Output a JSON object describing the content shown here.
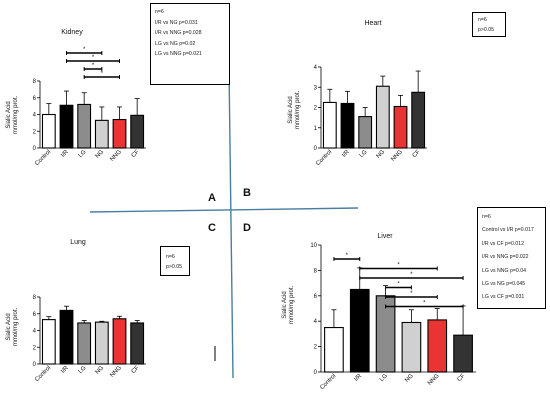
{
  "colors": {
    "Control": "#ffffff",
    "I/R": "#000000",
    "LG": "#8c8c8c",
    "NG": "#d0d0d0",
    "NNG": "#ea3434",
    "CF": "#333333",
    "divider": "#4a7ea0"
  },
  "quadrant_labels": [
    "A",
    "B",
    "C",
    "D"
  ],
  "chart_data": [
    {
      "id": "kidney",
      "type": "bar",
      "title": "Kidney",
      "ylabel_line1": "Sialic Acid",
      "ylabel_line2": "mmol/mg prot.",
      "categories": [
        "Control",
        "I/R",
        "LG",
        "NG",
        "NNG",
        "CF"
      ],
      "values": [
        4.0,
        5.1,
        5.2,
        3.3,
        3.4,
        3.9
      ],
      "errors": [
        1.3,
        1.7,
        1.4,
        1.6,
        1.5,
        2.0
      ],
      "ylim": [
        0,
        8
      ],
      "yticks": [
        0,
        2,
        4,
        6,
        8
      ],
      "brackets": [
        {
          "from": 1,
          "to": 3,
          "label": "*"
        },
        {
          "from": 1,
          "to": 4,
          "label": "*"
        },
        {
          "from": 2,
          "to": 3,
          "label": "*"
        },
        {
          "from": 2,
          "to": 4,
          "label": "*"
        }
      ],
      "stats": [
        "n=6",
        "I/R vs NG p=0.031",
        "I/R vs NNG p=0.028",
        "LG vs NG p=0.02",
        "LG vs NNG p=0.021"
      ]
    },
    {
      "id": "heart",
      "type": "bar",
      "title": "Heart",
      "ylabel_line1": "Sialic Acid",
      "ylabel_line2": "mmol/mg prot.",
      "categories": [
        "Control",
        "I/R",
        "LG",
        "NG",
        "NNG",
        "CF"
      ],
      "values": [
        2.25,
        2.2,
        1.55,
        3.05,
        2.05,
        2.75
      ],
      "errors": [
        0.65,
        0.6,
        0.45,
        0.5,
        0.55,
        1.05
      ],
      "ylim": [
        0,
        4
      ],
      "yticks": [
        0,
        1,
        2,
        3,
        4
      ],
      "brackets": [],
      "stats": [
        "n=6",
        "p>0.05"
      ]
    },
    {
      "id": "lung",
      "type": "bar",
      "title": "Lung",
      "ylabel_line1": "Sialic Acid",
      "ylabel_line2": "mmol/mg prot.",
      "categories": [
        "Control",
        "I/R",
        "LG",
        "NG",
        "NNG",
        "CF"
      ],
      "values": [
        5.3,
        6.4,
        4.9,
        5.0,
        5.4,
        4.9
      ],
      "errors": [
        0.35,
        0.5,
        0.3,
        0.1,
        0.3,
        0.3
      ],
      "ylim": [
        0,
        8
      ],
      "yticks": [
        0,
        2,
        4,
        6,
        8
      ],
      "brackets": [],
      "stats": [
        "n=6",
        "p>0.05"
      ]
    },
    {
      "id": "liver",
      "type": "bar",
      "title": "Liver",
      "ylabel_line1": "Sialic Acid",
      "ylabel_line2": "mmol/mg prot.",
      "categories": [
        "Control",
        "I/R",
        "LG",
        "NG",
        "NNG",
        "CF"
      ],
      "values": [
        3.5,
        6.5,
        6.0,
        3.9,
        4.1,
        2.9
      ],
      "errors": [
        1.4,
        1.7,
        0.8,
        1.0,
        0.9,
        2.3
      ],
      "ylim": [
        0,
        10
      ],
      "yticks": [
        0,
        2,
        4,
        6,
        8,
        10
      ],
      "brackets": [
        {
          "from": 0,
          "to": 1,
          "label": "*"
        },
        {
          "from": 1,
          "to": 4,
          "label": "*"
        },
        {
          "from": 1,
          "to": 5,
          "label": "*"
        },
        {
          "from": 2,
          "to": 3,
          "label": "*"
        },
        {
          "from": 2,
          "to": 4,
          "label": "*"
        },
        {
          "from": 2,
          "to": 5,
          "label": "*"
        }
      ],
      "stats": [
        "n=6",
        "Control vs I/R p=0.017",
        "I/R vs CF p=0.012",
        "I/R vs NNG p=0.022",
        "LG vs NNG p=0.04",
        "LG vs NG p=0.045",
        "LG vs CF p=0.031"
      ]
    }
  ]
}
